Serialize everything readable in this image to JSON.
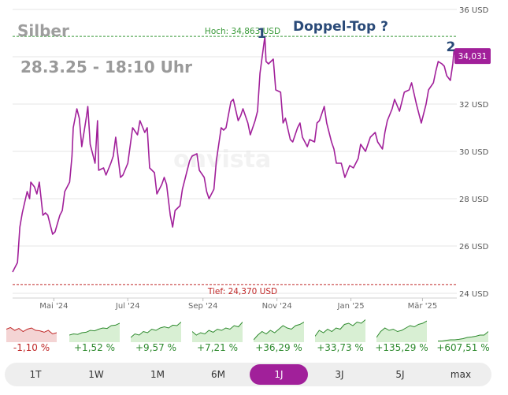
{
  "chart_data": {
    "type": "line",
    "title": "Silber",
    "annotation_date": "28.3.25 - 18:10 Uhr",
    "annotation_pattern": "Doppel-Top ?",
    "peak_markers": [
      {
        "label": "1",
        "x": "2024-10-22",
        "y": 34.86
      },
      {
        "label": "2",
        "x": "2025-03-27",
        "y": 34.3
      }
    ],
    "high_label": "Hoch: 34,863 USD",
    "high_value": 34.863,
    "low_label": "Tief: 24,370 USD",
    "low_value": 24.37,
    "last_value_label": "34,031",
    "last_value": 34.031,
    "ylim": [
      24,
      36
    ],
    "y_ticks": [
      24,
      26,
      28,
      30,
      32,
      34,
      36
    ],
    "y_tick_labels": [
      "24 USD",
      "26 USD",
      "28 USD",
      "30 USD",
      "32 USD",
      "34 USD",
      "36 USD"
    ],
    "x_range": [
      "2024-03-28",
      "2025-03-28"
    ],
    "x_ticks": [
      "2024-05-01",
      "2024-07-01",
      "2024-09-01",
      "2024-11-01",
      "2025-01-01",
      "2025-03-01"
    ],
    "x_tick_labels": [
      "Mai '24",
      "Jul '24",
      "Sep '24",
      "Nov '24",
      "Jan '25",
      "Mär '25"
    ],
    "ylabel": "USD",
    "series": [
      {
        "name": "Silber",
        "points": [
          [
            "2024-03-28",
            24.9
          ],
          [
            "2024-04-01",
            25.3
          ],
          [
            "2024-04-03",
            26.8
          ],
          [
            "2024-04-05",
            27.4
          ],
          [
            "2024-04-09",
            28.3
          ],
          [
            "2024-04-11",
            28.0
          ],
          [
            "2024-04-12",
            28.7
          ],
          [
            "2024-04-15",
            28.5
          ],
          [
            "2024-04-17",
            28.2
          ],
          [
            "2024-04-19",
            28.7
          ],
          [
            "2024-04-22",
            27.3
          ],
          [
            "2024-04-24",
            27.4
          ],
          [
            "2024-04-26",
            27.3
          ],
          [
            "2024-04-30",
            26.5
          ],
          [
            "2024-05-02",
            26.6
          ],
          [
            "2024-05-06",
            27.3
          ],
          [
            "2024-05-08",
            27.5
          ],
          [
            "2024-05-10",
            28.3
          ],
          [
            "2024-05-14",
            28.7
          ],
          [
            "2024-05-16",
            29.8
          ],
          [
            "2024-05-17",
            31.0
          ],
          [
            "2024-05-20",
            31.8
          ],
          [
            "2024-05-22",
            31.4
          ],
          [
            "2024-05-24",
            30.2
          ],
          [
            "2024-05-28",
            31.5
          ],
          [
            "2024-05-29",
            31.9
          ],
          [
            "2024-05-31",
            30.3
          ],
          [
            "2024-06-04",
            29.5
          ],
          [
            "2024-06-06",
            31.3
          ],
          [
            "2024-06-07",
            29.2
          ],
          [
            "2024-06-11",
            29.3
          ],
          [
            "2024-06-13",
            29.0
          ],
          [
            "2024-06-17",
            29.5
          ],
          [
            "2024-06-19",
            29.8
          ],
          [
            "2024-06-21",
            30.6
          ],
          [
            "2024-06-25",
            28.9
          ],
          [
            "2024-06-27",
            29.0
          ],
          [
            "2024-07-01",
            29.5
          ],
          [
            "2024-07-05",
            31.0
          ],
          [
            "2024-07-09",
            30.7
          ],
          [
            "2024-07-11",
            31.3
          ],
          [
            "2024-07-15",
            30.8
          ],
          [
            "2024-07-17",
            31.0
          ],
          [
            "2024-07-19",
            29.3
          ],
          [
            "2024-07-23",
            29.1
          ],
          [
            "2024-07-25",
            28.2
          ],
          [
            "2024-07-29",
            28.6
          ],
          [
            "2024-07-31",
            28.9
          ],
          [
            "2024-08-02",
            28.6
          ],
          [
            "2024-08-05",
            27.3
          ],
          [
            "2024-08-07",
            26.8
          ],
          [
            "2024-08-09",
            27.5
          ],
          [
            "2024-08-13",
            27.7
          ],
          [
            "2024-08-15",
            28.4
          ],
          [
            "2024-08-19",
            29.2
          ],
          [
            "2024-08-21",
            29.6
          ],
          [
            "2024-08-23",
            29.8
          ],
          [
            "2024-08-27",
            29.9
          ],
          [
            "2024-08-29",
            29.2
          ],
          [
            "2024-09-02",
            28.9
          ],
          [
            "2024-09-04",
            28.3
          ],
          [
            "2024-09-06",
            28.0
          ],
          [
            "2024-09-10",
            28.4
          ],
          [
            "2024-09-12",
            29.6
          ],
          [
            "2024-09-16",
            31.0
          ],
          [
            "2024-09-18",
            30.9
          ],
          [
            "2024-09-20",
            31.0
          ],
          [
            "2024-09-24",
            32.1
          ],
          [
            "2024-09-26",
            32.2
          ],
          [
            "2024-09-30",
            31.3
          ],
          [
            "2024-10-02",
            31.5
          ],
          [
            "2024-10-04",
            31.8
          ],
          [
            "2024-10-08",
            31.2
          ],
          [
            "2024-10-10",
            30.7
          ],
          [
            "2024-10-14",
            31.3
          ],
          [
            "2024-10-16",
            31.7
          ],
          [
            "2024-10-18",
            33.3
          ],
          [
            "2024-10-22",
            34.86
          ],
          [
            "2024-10-23",
            33.8
          ],
          [
            "2024-10-25",
            33.7
          ],
          [
            "2024-10-29",
            33.9
          ],
          [
            "2024-10-31",
            32.6
          ],
          [
            "2024-11-04",
            32.5
          ],
          [
            "2024-11-06",
            31.2
          ],
          [
            "2024-11-08",
            31.4
          ],
          [
            "2024-11-12",
            30.5
          ],
          [
            "2024-11-14",
            30.4
          ],
          [
            "2024-11-18",
            31.0
          ],
          [
            "2024-11-20",
            31.2
          ],
          [
            "2024-11-22",
            30.6
          ],
          [
            "2024-11-26",
            30.2
          ],
          [
            "2024-11-28",
            30.5
          ],
          [
            "2024-12-02",
            30.4
          ],
          [
            "2024-12-04",
            31.2
          ],
          [
            "2024-12-06",
            31.3
          ],
          [
            "2024-12-10",
            31.9
          ],
          [
            "2024-12-12",
            31.2
          ],
          [
            "2024-12-16",
            30.4
          ],
          [
            "2024-12-18",
            30.1
          ],
          [
            "2024-12-20",
            29.5
          ],
          [
            "2024-12-24",
            29.5
          ],
          [
            "2024-12-27",
            28.9
          ],
          [
            "2024-12-31",
            29.4
          ],
          [
            "2025-01-03",
            29.3
          ],
          [
            "2025-01-07",
            29.7
          ],
          [
            "2025-01-09",
            30.3
          ],
          [
            "2025-01-13",
            30.0
          ],
          [
            "2025-01-15",
            30.3
          ],
          [
            "2025-01-17",
            30.6
          ],
          [
            "2025-01-21",
            30.8
          ],
          [
            "2025-01-23",
            30.4
          ],
          [
            "2025-01-27",
            30.1
          ],
          [
            "2025-01-29",
            30.8
          ],
          [
            "2025-01-31",
            31.3
          ],
          [
            "2025-02-04",
            31.8
          ],
          [
            "2025-02-06",
            32.2
          ],
          [
            "2025-02-10",
            31.7
          ],
          [
            "2025-02-12",
            32.1
          ],
          [
            "2025-02-14",
            32.5
          ],
          [
            "2025-02-18",
            32.6
          ],
          [
            "2025-02-20",
            32.9
          ],
          [
            "2025-02-24",
            32.0
          ],
          [
            "2025-02-26",
            31.6
          ],
          [
            "2025-02-28",
            31.2
          ],
          [
            "2025-03-04",
            32.0
          ],
          [
            "2025-03-06",
            32.6
          ],
          [
            "2025-03-10",
            32.9
          ],
          [
            "2025-03-12",
            33.4
          ],
          [
            "2025-03-14",
            33.8
          ],
          [
            "2025-03-17",
            33.7
          ],
          [
            "2025-03-19",
            33.6
          ],
          [
            "2025-03-21",
            33.2
          ],
          [
            "2025-03-24",
            33.0
          ],
          [
            "2025-03-26",
            33.7
          ],
          [
            "2025-03-27",
            34.3
          ],
          [
            "2025-03-28",
            34.031
          ]
        ]
      }
    ]
  },
  "performance": [
    {
      "value": "-1,10 %",
      "trend": "neg",
      "spark": [
        0.55,
        0.62,
        0.5,
        0.58,
        0.45,
        0.55,
        0.6,
        0.5,
        0.48,
        0.42,
        0.5,
        0.35,
        0.4
      ]
    },
    {
      "value": "+1,52 %",
      "trend": "pos",
      "spark": [
        0.3,
        0.35,
        0.33,
        0.4,
        0.42,
        0.5,
        0.48,
        0.55,
        0.6,
        0.58,
        0.7,
        0.72,
        0.8
      ]
    },
    {
      "value": "+9,57 %",
      "trend": "pos",
      "spark": [
        0.2,
        0.35,
        0.3,
        0.45,
        0.4,
        0.55,
        0.5,
        0.6,
        0.65,
        0.6,
        0.72,
        0.7,
        0.85
      ]
    },
    {
      "value": "+7,21 %",
      "trend": "pos",
      "spark": [
        0.45,
        0.3,
        0.4,
        0.35,
        0.5,
        0.42,
        0.55,
        0.5,
        0.6,
        0.55,
        0.7,
        0.65,
        0.85
      ]
    },
    {
      "value": "+36,29 %",
      "trend": "pos",
      "spark": [
        0.1,
        0.3,
        0.45,
        0.35,
        0.5,
        0.4,
        0.55,
        0.7,
        0.6,
        0.55,
        0.7,
        0.75,
        0.85
      ]
    },
    {
      "value": "+33,73 %",
      "trend": "pos",
      "spark": [
        0.25,
        0.5,
        0.4,
        0.55,
        0.45,
        0.6,
        0.55,
        0.75,
        0.8,
        0.7,
        0.85,
        0.8,
        0.95
      ]
    },
    {
      "value": "+135,29 %",
      "trend": "pos",
      "spark": [
        0.2,
        0.45,
        0.6,
        0.5,
        0.55,
        0.45,
        0.5,
        0.6,
        0.7,
        0.65,
        0.75,
        0.8,
        0.9
      ]
    },
    {
      "value": "+607,51 %",
      "trend": "pos",
      "spark": [
        0.05,
        0.05,
        0.08,
        0.1,
        0.1,
        0.12,
        0.15,
        0.2,
        0.22,
        0.25,
        0.3,
        0.3,
        0.45
      ]
    }
  ],
  "tabs": [
    {
      "label": "1T",
      "active": false
    },
    {
      "label": "1W",
      "active": false
    },
    {
      "label": "1M",
      "active": false
    },
    {
      "label": "6M",
      "active": false
    },
    {
      "label": "1J",
      "active": true
    },
    {
      "label": "3J",
      "active": false
    },
    {
      "label": "5J",
      "active": false
    },
    {
      "label": "max",
      "active": false
    }
  ],
  "colors": {
    "line": "#a1209a",
    "high": "#3a9a3a",
    "low": "#c02828",
    "grid": "#e6e6e6",
    "pos_fill": "#d8efd3",
    "pos_line": "#2e8a2e",
    "neg_fill": "#f4d4d4",
    "neg_line": "#c02828"
  }
}
